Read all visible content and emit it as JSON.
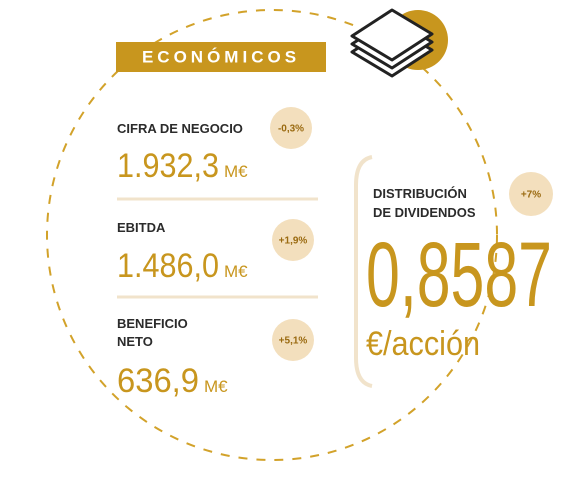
{
  "badge": "ECONÓMICOS",
  "indicators": [
    {
      "label_lines": [
        "CIFRA DE NEGOCIO"
      ],
      "value": "1.932,3",
      "unit": "M€",
      "change": "-0,3%"
    },
    {
      "label_lines": [
        "EBITDA"
      ],
      "value": "1.486,0",
      "unit": "M€",
      "change": "+1,9%"
    },
    {
      "label_lines": [
        "BENEFICIO",
        "NETO"
      ],
      "value": "636,9",
      "unit": "M€",
      "change": "+5,1%"
    }
  ],
  "dividend": {
    "label_lines": [
      "DISTRIBUCIÓN",
      "DE DIVIDENDOS"
    ],
    "change": "+7%",
    "value": "0,8587",
    "unit": "€/acción"
  }
}
